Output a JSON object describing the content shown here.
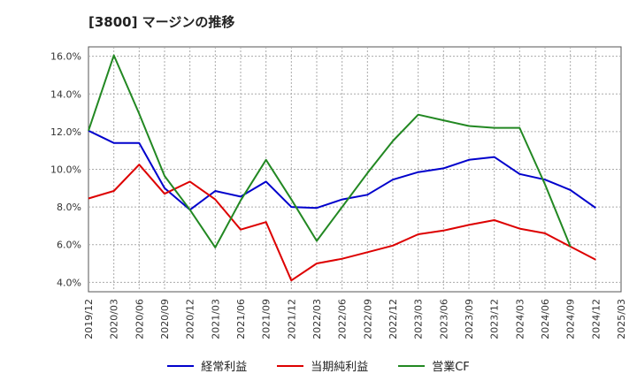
{
  "chart_data": {
    "type": "line",
    "title": "[3800]  マージンの推移",
    "x": [
      "2019/12",
      "2020/03",
      "2020/06",
      "2020/09",
      "2020/12",
      "2021/03",
      "2021/06",
      "2021/09",
      "2021/12",
      "2022/03",
      "2022/06",
      "2022/09",
      "2022/12",
      "2023/03",
      "2023/06",
      "2023/09",
      "2023/12",
      "2024/03",
      "2024/06",
      "2024/09",
      "2024/12",
      "2025/03"
    ],
    "ylim": [
      3.5,
      16.5
    ],
    "yticks": [
      4.0,
      6.0,
      8.0,
      10.0,
      12.0,
      14.0,
      16.0
    ],
    "ytick_labels": [
      "4.0%",
      "6.0%",
      "8.0%",
      "10.0%",
      "12.0%",
      "14.0%",
      "16.0%"
    ],
    "grid": true,
    "legend_position": "bottom",
    "series": [
      {
        "name": "経常利益",
        "color": "#0000cc",
        "values": [
          12.05,
          11.4,
          11.4,
          9.0,
          7.85,
          8.85,
          8.55,
          9.35,
          8.0,
          7.95,
          8.4,
          8.65,
          9.45,
          9.85,
          10.05,
          10.5,
          10.65,
          9.75,
          9.45,
          8.9,
          7.95,
          null
        ]
      },
      {
        "name": "当期純利益",
        "color": "#dd0000",
        "values": [
          8.45,
          8.85,
          10.25,
          8.7,
          9.35,
          8.4,
          6.8,
          7.2,
          4.1,
          5.0,
          5.25,
          5.6,
          5.95,
          6.55,
          6.75,
          7.05,
          7.3,
          6.85,
          6.6,
          5.9,
          5.2,
          null
        ]
      },
      {
        "name": "営業CF",
        "color": "#228822",
        "values": [
          12.05,
          16.05,
          12.95,
          9.65,
          7.85,
          5.85,
          8.35,
          10.5,
          8.4,
          6.2,
          8.0,
          9.8,
          11.5,
          12.9,
          12.6,
          12.3,
          12.2,
          12.2,
          9.2,
          5.9,
          null,
          null
        ]
      }
    ]
  }
}
